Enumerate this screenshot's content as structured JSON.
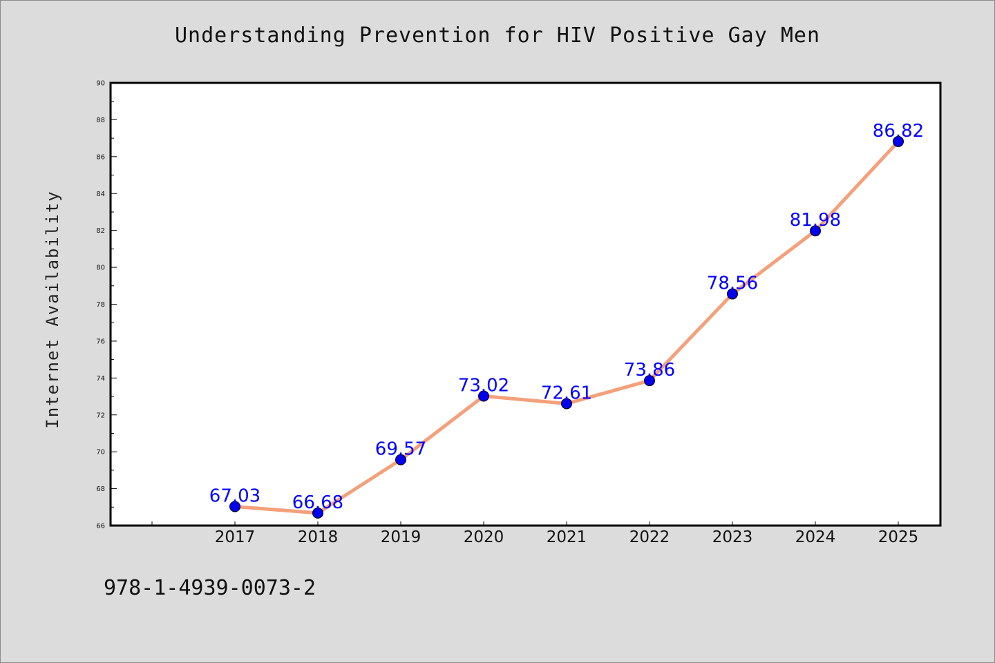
{
  "chart_data": {
    "type": "line",
    "title": "Understanding Prevention for HIV Positive Gay Men",
    "xlabel": "",
    "ylabel": "Internet Availability",
    "x": [
      "2017",
      "2018",
      "2019",
      "2020",
      "2021",
      "2022",
      "2023",
      "2024",
      "2025"
    ],
    "series": [
      {
        "values": [
          67.03,
          66.68,
          69.57,
          73.02,
          72.61,
          73.86,
          78.56,
          81.98,
          86.82
        ],
        "labels": [
          "67.03",
          "66.68",
          "69.57",
          "73.02",
          "72.61",
          "73.86",
          "78.56",
          "81.98",
          "86.82"
        ],
        "line_color": "#f4a07a",
        "marker_color": "#0000ee"
      }
    ],
    "ylim": [
      66,
      90
    ],
    "yticks": [
      "66",
      "68",
      "70",
      "72",
      "74",
      "76",
      "78",
      "80",
      "82",
      "84",
      "86",
      "88",
      "90"
    ],
    "grid": false,
    "legend": "none"
  },
  "footer": {
    "code": "978-1-4939-0073-2"
  },
  "colors": {
    "background": "#dcdcdc",
    "plot_background": "#ffffff",
    "label_color": "#0000ff"
  }
}
